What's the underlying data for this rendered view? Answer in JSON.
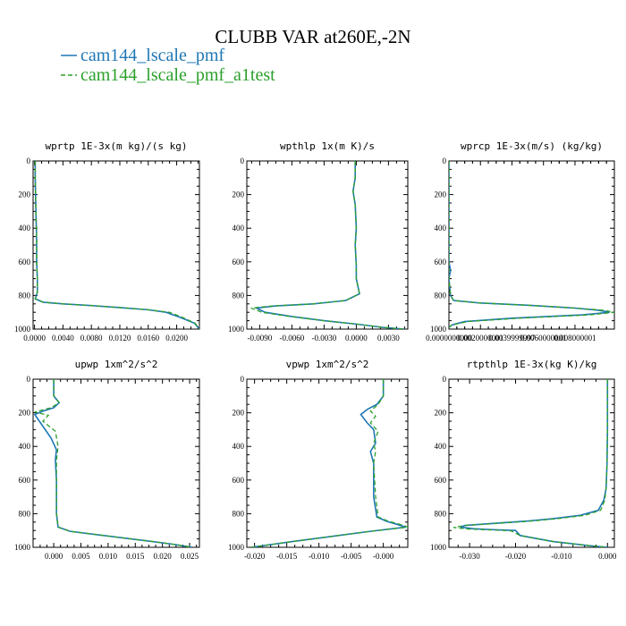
{
  "figure": {
    "title": "CLUBB VAR at260E,-2N"
  },
  "legend": {
    "items": [
      {
        "label": "cam144_lscale_pmf",
        "color": "#1f77b4",
        "dash": "solid"
      },
      {
        "label": "cam144_lscale_pmf_a1test",
        "color": "#2ca02c",
        "dash": "dashed"
      }
    ]
  },
  "chart_data": [
    {
      "type": "line",
      "title": "wprtp  1E-3x(m kg)/(s kg)",
      "xlabel": "",
      "ylabel": "",
      "xlim": [
        -0.0002,
        0.0232
      ],
      "ylim": [
        1000,
        0
      ],
      "xticks": [
        "0.0000",
        "0.0040",
        "0.0080",
        "0.0120",
        "0.0160",
        "0.0200"
      ],
      "xtick_values": [
        0.0,
        0.004,
        0.008,
        0.012,
        0.016,
        0.02
      ],
      "yticks": [
        0,
        200,
        400,
        600,
        800,
        1000
      ],
      "series": [
        {
          "name": "cam144_lscale_pmf",
          "x": [
            0.0001,
            0.0001,
            0.0002,
            0.0003,
            0.0003,
            0.0004,
            0.0004,
            0.0001,
            0.0012,
            0.004,
            0.008,
            0.012,
            0.016,
            0.0185,
            0.0205,
            0.0225,
            0.0232
          ],
          "y": [
            0,
            100,
            300,
            480,
            600,
            700,
            780,
            820,
            840,
            850,
            860,
            872,
            885,
            900,
            930,
            965,
            1000
          ]
        },
        {
          "name": "cam144_lscale_pmf_a1test",
          "x": [
            0.0001,
            0.0001,
            0.0002,
            0.0003,
            0.0003,
            0.0004,
            0.0004,
            0.0001,
            0.0012,
            0.004,
            0.008,
            0.012,
            0.016,
            0.019,
            0.0208,
            0.0226,
            0.0232
          ],
          "y": [
            0,
            100,
            300,
            480,
            600,
            700,
            780,
            820,
            840,
            850,
            860,
            872,
            885,
            900,
            930,
            965,
            1000
          ]
        }
      ]
    },
    {
      "type": "line",
      "title": "wpthlp  1x(m K)/s",
      "xlabel": "",
      "ylabel": "",
      "xlim": [
        -0.0102,
        0.0048
      ],
      "ylim": [
        1000,
        0
      ],
      "xticks": [
        "-0.0090",
        "-0.0060",
        "-0.0030",
        "0.0000",
        "0.0030"
      ],
      "xtick_values": [
        -0.009,
        -0.006,
        -0.003,
        0.0,
        0.003
      ],
      "yticks": [
        0,
        200,
        400,
        600,
        800,
        1000
      ],
      "series": [
        {
          "name": "cam144_lscale_pmf",
          "x": [
            -0.0001,
            -0.0001,
            -0.0003,
            -0.0001,
            0.0,
            -0.0001,
            0.0,
            0.0,
            0.0003,
            -0.001,
            -0.004,
            -0.0075,
            -0.0093,
            -0.0085,
            -0.006,
            -0.003,
            0.0,
            0.0025,
            0.0045
          ],
          "y": [
            0,
            100,
            180,
            260,
            400,
            500,
            620,
            700,
            790,
            830,
            850,
            862,
            875,
            900,
            925,
            950,
            970,
            990,
            1000
          ]
        },
        {
          "name": "cam144_lscale_pmf_a1test",
          "x": [
            -0.0001,
            -0.0001,
            -0.0003,
            -0.0001,
            0.0,
            -0.0001,
            0.0,
            0.0,
            0.0003,
            -0.001,
            -0.004,
            -0.0078,
            -0.0098,
            -0.0088,
            -0.0062,
            -0.003,
            0.0,
            0.0025,
            0.0045
          ],
          "y": [
            0,
            100,
            180,
            260,
            400,
            500,
            620,
            700,
            790,
            830,
            850,
            862,
            875,
            900,
            925,
            950,
            970,
            990,
            1000
          ]
        }
      ]
    },
    {
      "type": "line",
      "title": "wprcp  1E-3x(m/s) (kg/kg)",
      "xlabel": "",
      "ylabel": "",
      "xlim": [
        0.0,
        0.0105
      ],
      "ylim": [
        1000,
        0
      ],
      "xticks": [
        "0.0000000000",
        "0.0020000001",
        "0.0039999997",
        "0.0060000001",
        "0.008000001"
      ],
      "xtick_values": [
        0.0,
        0.002,
        0.004,
        0.006,
        0.008
      ],
      "yticks": [
        0,
        200,
        400,
        600,
        800,
        1000
      ],
      "series": [
        {
          "name": "cam144_lscale_pmf",
          "x": [
            0.0,
            0.0,
            0.0,
            0.0,
            0.0001,
            0.0,
            0.0001,
            0.0003,
            0.002,
            0.005,
            0.008,
            0.0095,
            0.0102,
            0.0085,
            0.004,
            0.001,
            0.0002,
            0.0
          ],
          "y": [
            0,
            200,
            400,
            600,
            650,
            700,
            800,
            830,
            845,
            858,
            875,
            888,
            900,
            915,
            935,
            955,
            975,
            990
          ]
        },
        {
          "name": "cam144_lscale_pmf_a1test",
          "x": [
            0.0,
            0.0,
            0.0,
            0.0,
            0.0,
            0.0,
            0.0001,
            0.0003,
            0.002,
            0.005,
            0.008,
            0.0098,
            0.0105,
            0.009,
            0.0045,
            0.0012,
            0.0002,
            0.0
          ],
          "y": [
            0,
            200,
            400,
            600,
            650,
            700,
            800,
            830,
            845,
            858,
            875,
            888,
            900,
            915,
            935,
            955,
            975,
            990
          ]
        }
      ]
    },
    {
      "type": "line",
      "title": "upwp  1xm^2/s^2",
      "xlabel": "",
      "ylabel": "",
      "xlim": [
        -0.0038,
        0.0268
      ],
      "ylim": [
        1000,
        0
      ],
      "xticks": [
        "0.000",
        "0.005",
        "0.010",
        "0.015",
        "0.020",
        "0.025"
      ],
      "xtick_values": [
        0.0,
        0.005,
        0.01,
        0.015,
        0.02,
        0.025
      ],
      "yticks": [
        0,
        200,
        400,
        600,
        800,
        1000
      ],
      "series": [
        {
          "name": "cam144_lscale_pmf",
          "x": [
            0.0,
            0.0,
            0.001,
            0.0,
            -0.002,
            -0.0035,
            -0.002,
            -0.0005,
            0.0005,
            0.0003,
            0.0005,
            0.0005,
            0.0008,
            0.003,
            0.008,
            0.013,
            0.018,
            0.022,
            0.0255
          ],
          "y": [
            0,
            100,
            140,
            170,
            190,
            210,
            280,
            350,
            420,
            480,
            600,
            800,
            880,
            905,
            925,
            945,
            965,
            982,
            1000
          ]
        },
        {
          "name": "cam144_lscale_pmf_a1test",
          "x": [
            0.0,
            0.0,
            0.001,
            -0.0005,
            -0.0035,
            -0.001,
            -0.002,
            0.0003,
            0.0008,
            0.0005,
            0.0005,
            0.0005,
            0.0008,
            0.003,
            0.008,
            0.013,
            0.018,
            0.022,
            0.0255
          ],
          "y": [
            0,
            100,
            140,
            170,
            195,
            215,
            250,
            310,
            400,
            480,
            600,
            800,
            880,
            905,
            925,
            945,
            965,
            982,
            1000
          ]
        }
      ]
    },
    {
      "type": "line",
      "title": "vpwp  1xm^2/s^2",
      "xlabel": "",
      "ylabel": "",
      "xlim": [
        -0.0212,
        0.0038
      ],
      "ylim": [
        1000,
        0
      ],
      "xticks": [
        "-0.020",
        "-0.015",
        "-0.010",
        "-0.005",
        "-0.000"
      ],
      "xtick_values": [
        -0.02,
        -0.015,
        -0.01,
        -0.005,
        0.0
      ],
      "yticks": [
        0,
        200,
        400,
        600,
        800,
        1000
      ],
      "series": [
        {
          "name": "cam144_lscale_pmf",
          "x": [
            0.0,
            0.0,
            -0.001,
            -0.0025,
            -0.0035,
            -0.0025,
            -0.0015,
            -0.0012,
            -0.002,
            -0.0015,
            -0.0015,
            -0.001,
            0.0005,
            0.002,
            0.0035,
            -0.002,
            -0.008,
            -0.014,
            -0.0205
          ],
          "y": [
            0,
            100,
            150,
            180,
            210,
            260,
            300,
            380,
            430,
            500,
            700,
            820,
            845,
            862,
            880,
            905,
            935,
            965,
            1000
          ]
        },
        {
          "name": "cam144_lscale_pmf_a1test",
          "x": [
            0.0,
            0.0,
            -0.0008,
            -0.002,
            -0.0012,
            -0.002,
            -0.0008,
            -0.0015,
            -0.0012,
            -0.0015,
            -0.0012,
            -0.0008,
            0.0008,
            0.0025,
            0.0038,
            -0.002,
            -0.008,
            -0.014,
            -0.0205
          ],
          "y": [
            0,
            100,
            150,
            190,
            220,
            260,
            310,
            380,
            430,
            500,
            700,
            820,
            845,
            862,
            880,
            905,
            935,
            965,
            1000
          ]
        }
      ]
    },
    {
      "type": "line",
      "title": "rtpthlp  1E-3x(kg K)/kg",
      "xlabel": "",
      "ylabel": "",
      "xlim": [
        -0.0345,
        0.0015
      ],
      "ylim": [
        1000,
        0
      ],
      "xticks": [
        "-0.030",
        "-0.020",
        "-0.010",
        "0.000"
      ],
      "xtick_values": [
        -0.03,
        -0.02,
        -0.01,
        0.0
      ],
      "yticks": [
        0,
        200,
        400,
        600,
        800,
        1000
      ],
      "series": [
        {
          "name": "cam144_lscale_pmf",
          "x": [
            0.0,
            0.0,
            -0.0001,
            -0.0003,
            -0.0008,
            -0.002,
            -0.006,
            -0.012,
            -0.018,
            -0.026,
            -0.031,
            -0.032,
            -0.029,
            -0.025,
            -0.02,
            -0.019,
            -0.012,
            -0.004,
            0.0
          ],
          "y": [
            0,
            300,
            500,
            650,
            720,
            780,
            810,
            830,
            845,
            860,
            870,
            880,
            890,
            895,
            900,
            930,
            965,
            990,
            1000
          ]
        },
        {
          "name": "cam144_lscale_pmf_a1test",
          "x": [
            0.0,
            0.0,
            -0.0001,
            -0.0003,
            -0.0006,
            -0.0015,
            -0.005,
            -0.011,
            -0.017,
            -0.025,
            -0.031,
            -0.0335,
            -0.03,
            -0.025,
            -0.021,
            -0.019,
            -0.012,
            -0.004,
            0.0
          ],
          "y": [
            0,
            300,
            500,
            650,
            720,
            780,
            810,
            830,
            845,
            860,
            870,
            882,
            892,
            897,
            902,
            930,
            965,
            990,
            1000
          ]
        }
      ]
    }
  ]
}
